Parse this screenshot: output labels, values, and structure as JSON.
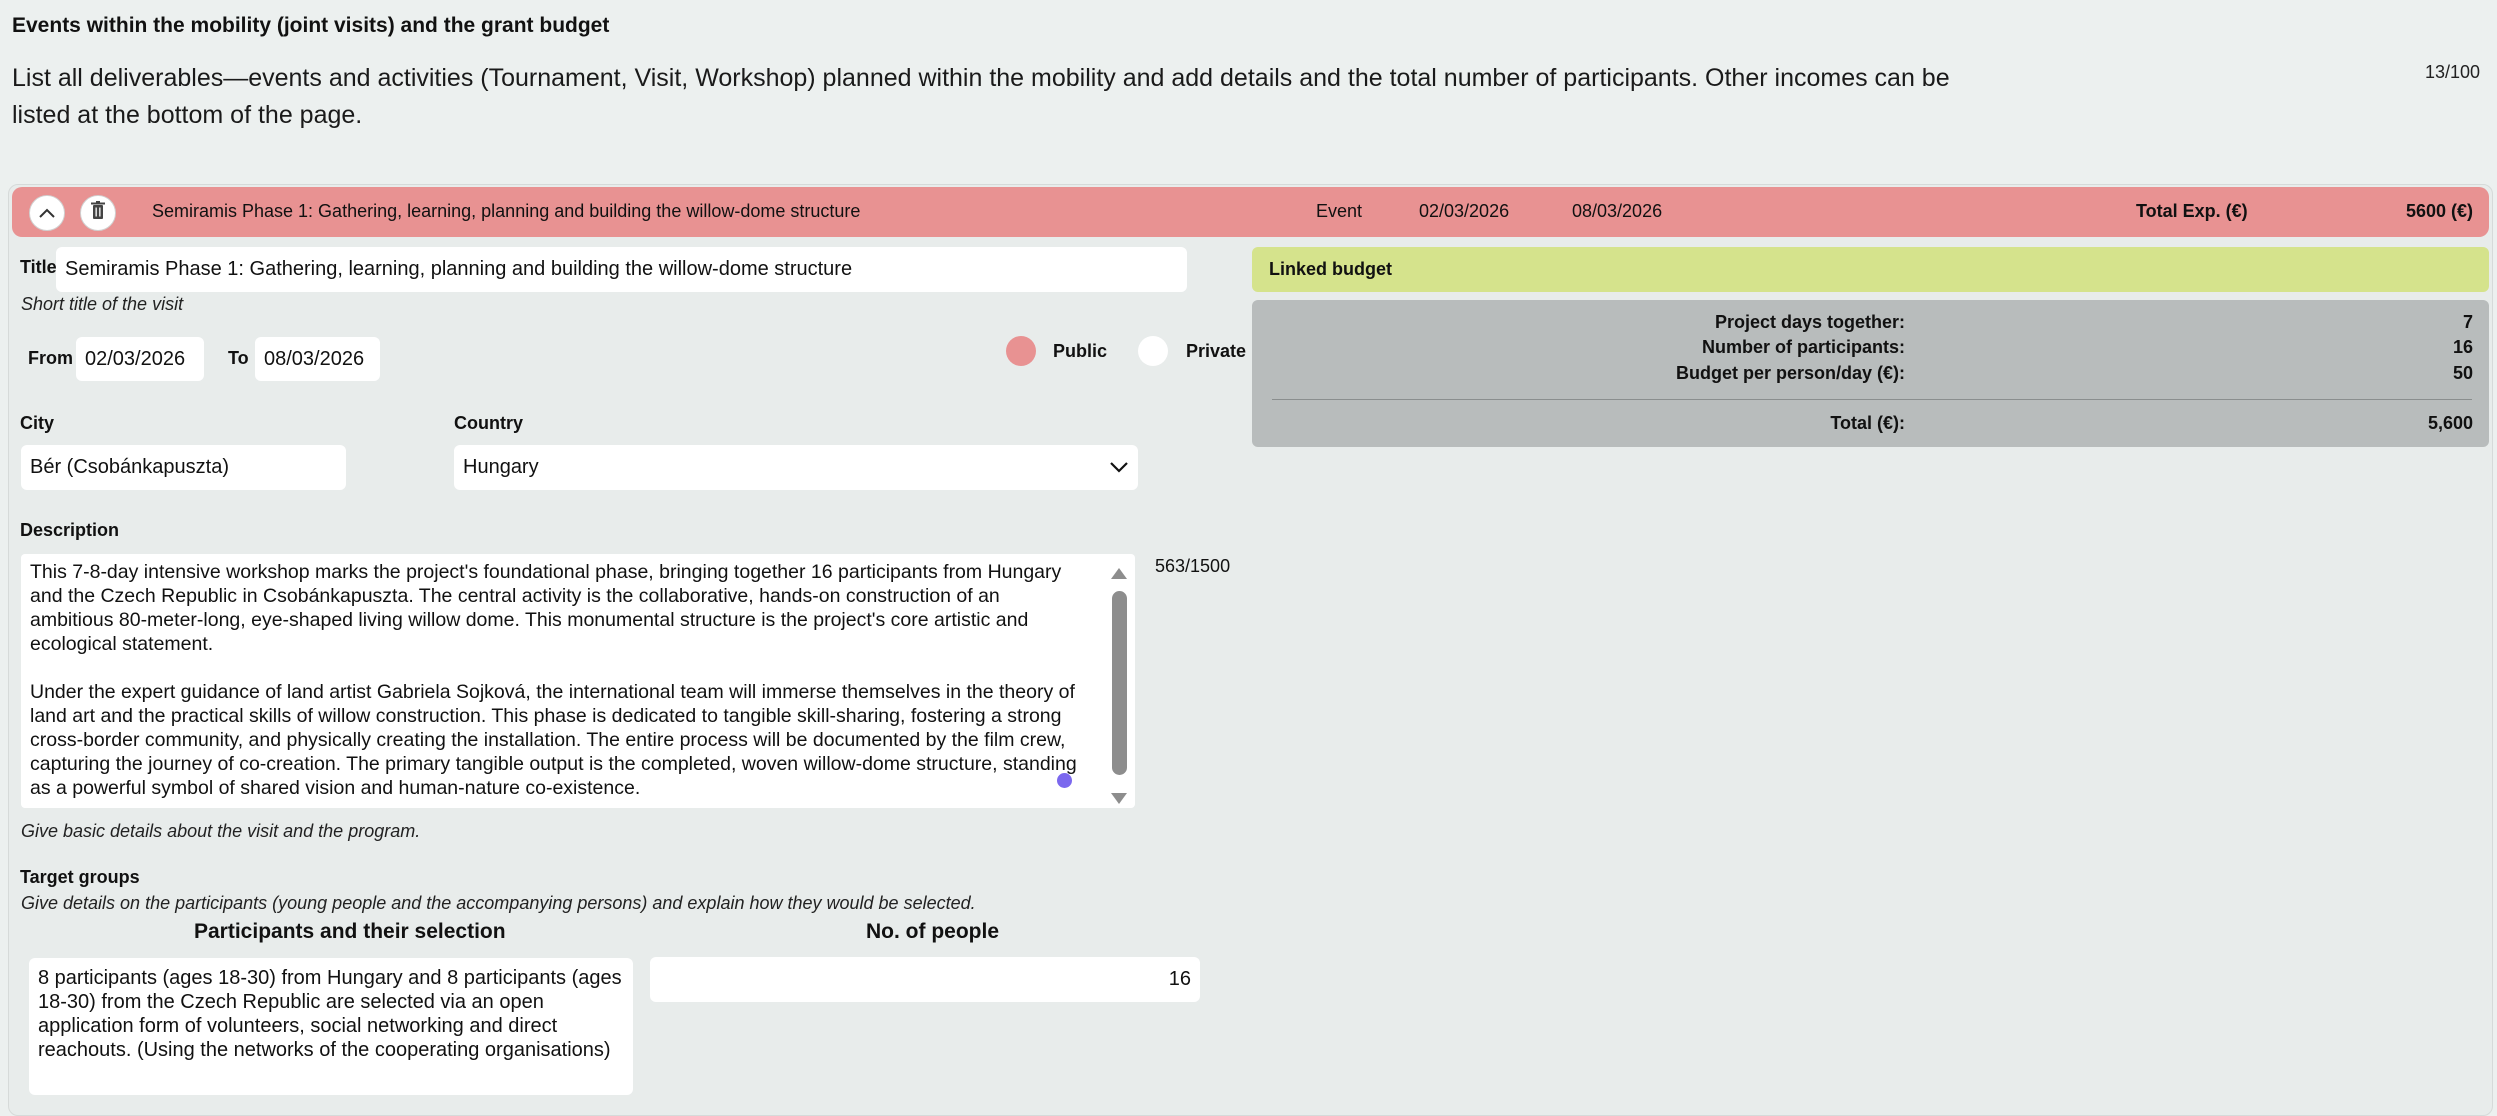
{
  "page": {
    "section_title": "Events within the mobility (joint visits) and the grant budget",
    "intro": "List all deliverables—events and activities (Tournament, Visit, Workshop) planned within the mobility and add details and the total number of participants. Other incomes can be listed at the bottom of the page.",
    "counter": "13/100"
  },
  "event": {
    "header": {
      "title": "Semiramis Phase 1: Gathering, learning, planning and building the willow-dome structure",
      "type": "Event",
      "from": "02/03/2026",
      "to": "08/03/2026",
      "total_label": "Total Exp. (€)",
      "total_value": "5600 (€)",
      "collapse_icon": "chevron-up-icon",
      "delete_icon": "trash-icon"
    },
    "title_label": "Title",
    "title_value": "Semiramis Phase 1: Gathering, learning, planning and building the willow-dome structure",
    "title_hint": "Short title of the visit",
    "from_label": "From",
    "from_value": "02/03/2026",
    "to_label": "To",
    "to_value": "08/03/2026",
    "visibility": {
      "public_label": "Public",
      "private_label": "Private",
      "selected": "Public"
    },
    "city_label": "City",
    "city_value": "Bér (Csobánkapuszta)",
    "country_label": "Country",
    "country_value": "Hungary",
    "description_label": "Description",
    "description_p1": "This 7-8-day intensive workshop marks the project's foundational phase, bringing together 16 participants from Hungary and the Czech Republic in Csobánkapuszta. The central activity is the collaborative, hands-on construction of an ambitious 80-meter-long, eye-shaped living willow dome. This monumental structure is the project's core artistic and ecological statement.",
    "description_p2": "Under the expert guidance of land artist Gabriela Sojková, the international team will immerse themselves in the theory of land art and the practical skills of willow construction. This phase is dedicated to tangible skill-sharing, fostering a strong cross-border community, and physically creating the installation. The entire process will be documented by the film crew, capturing the journey of co-creation. The primary tangible output is the completed, woven willow-dome structure, standing as a powerful symbol of shared vision and human-nature co-existence.",
    "description_counter": "563/1500",
    "description_hint": "Give basic details about the visit and the program.",
    "target_label": "Target groups",
    "target_hint": "Give details on the participants (young people and the accompanying persons) and explain how they would be selected.",
    "participants_header": "Participants and their selection",
    "people_header": "No. of people",
    "participants_text": "8 participants (ages 18-30) from Hungary and 8 participants (ages 18-30) from the Czech Republic are selected via an open application form of volunteers, social networking and direct reachouts. (Using the networks of the cooperating organisations)",
    "people_value": "16"
  },
  "budget": {
    "heading": "Linked budget",
    "days_label": "Project days together:",
    "days_value": "7",
    "participants_label": "Number of participants:",
    "participants_value": "16",
    "per_day_label": "Budget per person/day (€):",
    "per_day_value": "50",
    "total_label": "Total (€):",
    "total_value": "5,600"
  },
  "colors": {
    "header_bg": "#e89292",
    "linked_budget_bg": "#d5e38c",
    "budget_box_bg": "#b8bcbc",
    "page_bg": "#ecf0ef",
    "radio_selected": "#e89292",
    "cursor_dot": "#7b68ee"
  }
}
